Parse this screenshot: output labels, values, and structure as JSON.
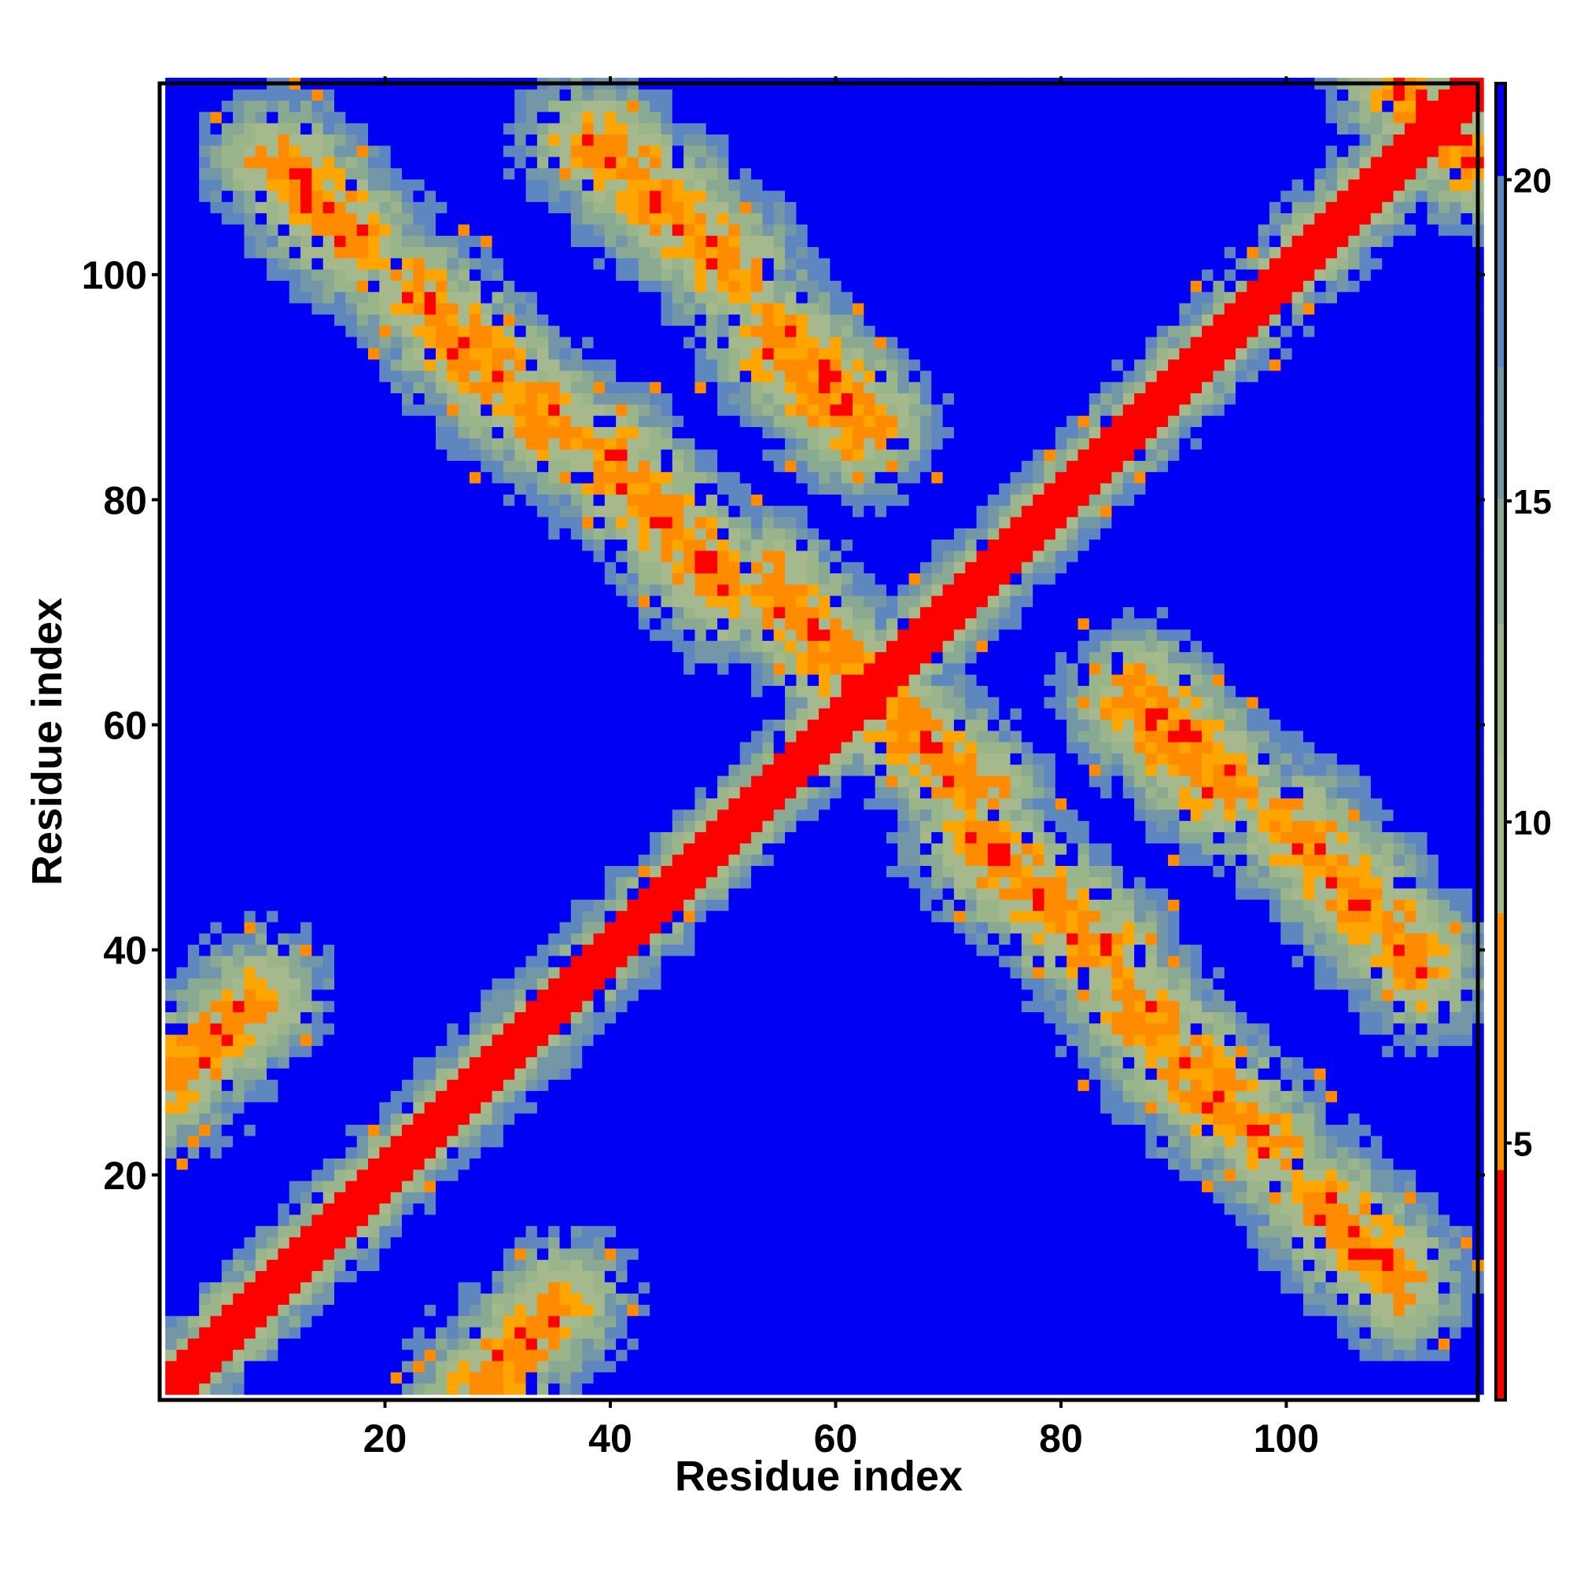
{
  "chart_data": {
    "type": "heatmap",
    "title": "",
    "xlabel": "Residue index",
    "ylabel": "Residue index",
    "n_residues": 117,
    "xlim": [
      1,
      117
    ],
    "ylim": [
      1,
      117
    ],
    "x_ticks": [
      20,
      40,
      60,
      80,
      100
    ],
    "y_ticks": [
      20,
      40,
      60,
      80,
      100
    ],
    "colorbar": {
      "label": "",
      "range": [
        1,
        21.5
      ],
      "ticks": [
        5,
        10,
        15,
        20
      ],
      "colors": [
        "#ff0000",
        "#ff9900",
        "#9ab58a",
        "#5e86bf",
        "#0000f5"
      ]
    },
    "value_description": "Symmetric residue-residue distance map; values near 1-4 on the main diagonal, ~5-7 on bands parallel and antiparallel to the diagonal, 10-20 in surrounding halos, and >20 elsewhere (saturated blue).",
    "features": {
      "main_diagonal": {
        "from": [
          1,
          1
        ],
        "to": [
          117,
          117
        ],
        "value": 2
      },
      "antiparallel_bands": [
        {
          "from": [
            1,
            28
          ],
          "to": [
            9,
            36
          ],
          "value": 6
        },
        {
          "from": [
            10,
            110
          ],
          "to": [
            17,
            103
          ],
          "value": 6
        },
        {
          "from": [
            26,
            94
          ],
          "to": [
            35,
            86
          ],
          "value": 6
        },
        {
          "from": [
            38,
            112
          ],
          "to": [
            51,
            100
          ],
          "value": 6
        },
        {
          "from": [
            40,
            84
          ],
          "to": [
            50,
            73
          ],
          "value": 6
        },
        {
          "from": [
            54,
            72
          ],
          "to": [
            62,
            63
          ],
          "value": 6
        },
        {
          "from": [
            55,
            95
          ],
          "to": [
            63,
            87
          ],
          "value": 6
        },
        {
          "from": [
            65,
            61
          ],
          "to": [
            73,
            54
          ],
          "value": 6
        },
        {
          "from": [
            72,
            50
          ],
          "to": [
            83,
            40
          ],
          "value": 6
        },
        {
          "from": [
            86,
            62
          ],
          "to": [
            94,
            54
          ],
          "value": 6
        },
        {
          "from": [
            86,
            36
          ],
          "to": [
            99,
            22
          ],
          "value": 6
        },
        {
          "from": [
            101,
            51
          ],
          "to": [
            112,
            39
          ],
          "value": 6
        },
        {
          "from": [
            103,
            18
          ],
          "to": [
            110,
            11
          ],
          "value": 6
        },
        {
          "from": [
            28,
            1
          ],
          "to": [
            36,
            9
          ],
          "value": 6
        },
        {
          "from": [
            110,
            117
          ],
          "to": [
            116,
            111
          ],
          "value": 6
        }
      ]
    }
  }
}
